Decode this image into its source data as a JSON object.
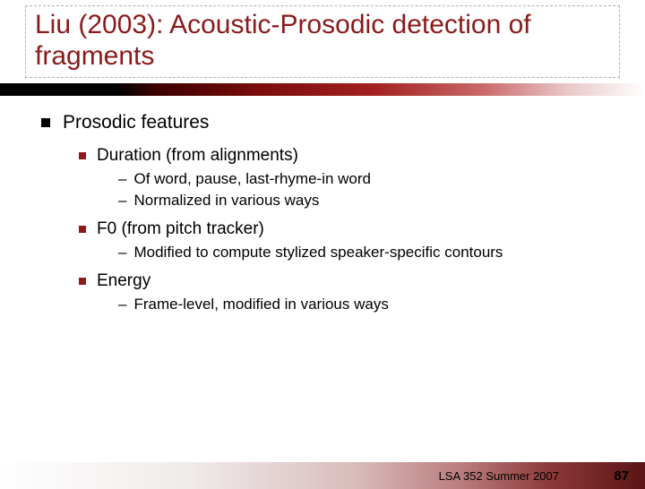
{
  "title": "Liu (2003): Acoustic-Prosodic detection of fragments",
  "colors": {
    "title": "#8b1a1a",
    "bullet1": "#000000",
    "bullet2": "#8b1a1a",
    "text": "#000000"
  },
  "bullets": {
    "lvl1": "Prosodic features",
    "dur": "Duration (from alignments)",
    "dur_a": "Of word, pause, last-rhyme-in word",
    "dur_b": "Normalized in various ways",
    "f0": "F0 (from pitch tracker)",
    "f0_a": "Modified to compute stylized speaker-specific contours",
    "energy": "Energy",
    "energy_a": "Frame-level, modified in various ways"
  },
  "footer": "LSA 352 Summer 2007",
  "page": "87"
}
